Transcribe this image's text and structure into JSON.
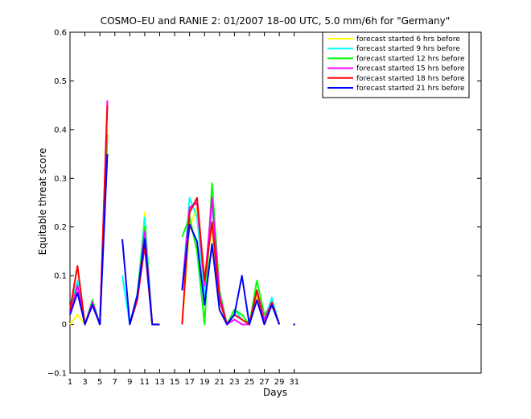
{
  "chart_data": {
    "type": "line",
    "title": "COSMO–EU and RANIE 2: 01/2007 18–00 UTC, 5.0 mm/6h for \"Germany\"",
    "xlabel": "Days",
    "ylabel": "Equitable threat score",
    "xlim": [
      1,
      56
    ],
    "ylim": [
      -0.1,
      0.6
    ],
    "xticks": [
      1,
      3,
      5,
      7,
      9,
      11,
      13,
      15,
      17,
      19,
      21,
      23,
      25,
      27,
      29,
      31
    ],
    "yticks": [
      -0.1,
      0,
      0.1,
      0.2,
      0.3,
      0.4,
      0.5,
      0.6
    ],
    "ytick_labels": [
      "−0.1",
      "0",
      "0.1",
      "0.2",
      "0.3",
      "0.4",
      "0.5",
      "0.6"
    ],
    "grid": false,
    "legend_position": "top-right",
    "series": [
      {
        "name": "forecast started 6 hrs before",
        "color": "#ffff00",
        "values": [
          0.0,
          0.02,
          0.0,
          0.05,
          0.0,
          0.4,
          null,
          null,
          0.0,
          0.05,
          0.23,
          0.0,
          0.0,
          null,
          null,
          0.0,
          0.2,
          0.24,
          0.1,
          0.2,
          0.03,
          0.0,
          0.03,
          0.01,
          0.0,
          0.06,
          0.0,
          0.05,
          0.0,
          null,
          0.0
        ]
      },
      {
        "name": "forecast started 9 hrs before",
        "color": "#00ffff",
        "values": [
          0.03,
          0.09,
          0.0,
          0.05,
          0.0,
          0.38,
          null,
          0.1,
          0.0,
          0.06,
          0.22,
          0.0,
          0.0,
          null,
          null,
          0.07,
          0.26,
          0.22,
          0.06,
          0.25,
          0.05,
          0.0,
          0.03,
          0.01,
          0.0,
          0.07,
          0.01,
          0.055,
          0.0,
          null,
          0.0
        ]
      },
      {
        "name": "forecast started 12 hrs before",
        "color": "#00ff00",
        "values": [
          0.03,
          0.08,
          0.0,
          0.05,
          0.0,
          0.39,
          null,
          null,
          0.0,
          0.06,
          0.2,
          0.0,
          0.0,
          null,
          null,
          0.18,
          0.22,
          0.15,
          0.0,
          0.29,
          0.07,
          0.0,
          0.03,
          0.02,
          0.0,
          0.09,
          0.02,
          0.04,
          0.0,
          null,
          0.0
        ]
      },
      {
        "name": "forecast started 15 hrs before",
        "color": "#ff00ff",
        "values": [
          0.02,
          0.08,
          0.0,
          0.045,
          0.0,
          0.46,
          null,
          null,
          0.0,
          0.05,
          0.19,
          0.0,
          0.0,
          null,
          null,
          0.07,
          0.24,
          0.25,
          0.08,
          0.26,
          0.06,
          0.0,
          0.01,
          0.0,
          0.0,
          0.07,
          0.01,
          0.045,
          0.0,
          null,
          0.0
        ]
      },
      {
        "name": "forecast started 18 hrs before",
        "color": "#ff0000",
        "values": [
          0.03,
          0.12,
          0.0,
          0.04,
          0.0,
          0.45,
          null,
          null,
          0.0,
          0.05,
          0.16,
          0.0,
          0.0,
          null,
          null,
          0.0,
          0.23,
          0.26,
          0.09,
          0.21,
          0.05,
          0.0,
          0.02,
          0.01,
          0.0,
          0.07,
          0.0,
          0.045,
          0.0,
          null,
          0.0
        ]
      },
      {
        "name": "forecast started 21 hrs before",
        "color": "#0000ff",
        "values": [
          0.02,
          0.065,
          0.0,
          0.04,
          0.0,
          0.35,
          null,
          0.175,
          0.0,
          0.06,
          0.175,
          0.0,
          0.0,
          null,
          null,
          0.07,
          0.205,
          0.17,
          0.04,
          0.165,
          0.03,
          0.0,
          0.02,
          0.1,
          0.0,
          0.05,
          0.0,
          0.04,
          0.0,
          null,
          0.0
        ]
      }
    ]
  }
}
